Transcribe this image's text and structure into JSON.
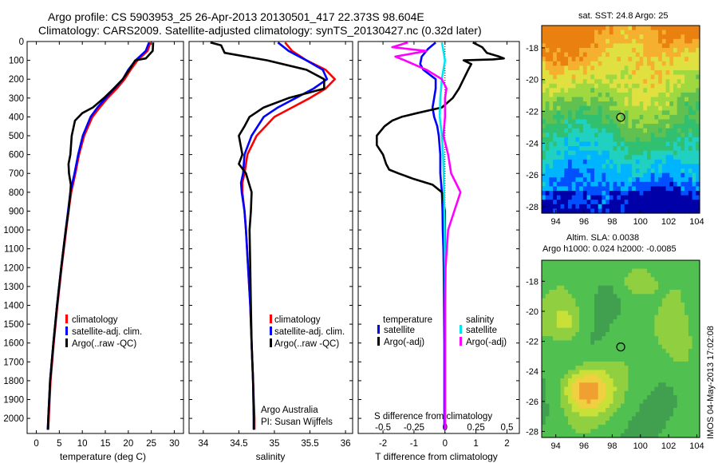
{
  "header": {
    "title_line1": "Argo profile: CS 5903953_25 26-Apr-2013 20130501_417 22.373S 98.604E",
    "title_line2": "Climatology: CARS2009. Satellite-adjusted climatology: synTS_20130427.nc (0.32d later)"
  },
  "colors": {
    "climatology": "#ff0000",
    "satellite_adj": "#0000ff",
    "argo": "#000000",
    "salinity_satellite": "#00e5ee",
    "salinity_argo": "#ff00ff"
  },
  "depth_ticks": [
    "0",
    "100",
    "200",
    "300",
    "400",
    "500",
    "600",
    "700",
    "800",
    "900",
    "1000",
    "1100",
    "1200",
    "1300",
    "1400",
    "1500",
    "1600",
    "1700",
    "1800",
    "1900",
    "2000"
  ],
  "chart_data": [
    {
      "type": "line",
      "name": "temperature",
      "xlabel": "temperature (deg C)",
      "ylabel": "",
      "xlim": [
        -2,
        32
      ],
      "ylim": [
        2080,
        0
      ],
      "x_ticks": [
        "0",
        "5",
        "10",
        "15",
        "20",
        "25",
        "30"
      ],
      "x_tick_values": [
        0,
        5,
        10,
        15,
        20,
        25,
        30
      ],
      "legend": [
        "climatology",
        "satellite-adj. clim.",
        "Argo(..raw -QC)"
      ],
      "series": [
        {
          "name": "climatology",
          "color": "#ff0000",
          "depth": [
            5,
            50,
            100,
            150,
            200,
            250,
            300,
            350,
            400,
            500,
            600,
            700,
            800,
            900,
            1000,
            1200,
            1400,
            1600,
            1800,
            2000,
            2060
          ],
          "values": [
            24.8,
            24.2,
            22.0,
            20.5,
            19.2,
            17.5,
            15.5,
            13.8,
            12.2,
            10.4,
            9.3,
            8.5,
            7.6,
            7.0,
            6.5,
            5.5,
            4.6,
            3.8,
            3.1,
            2.7,
            2.6
          ]
        },
        {
          "name": "satellite-adj. clim.",
          "color": "#0000ff",
          "depth": [
            5,
            50,
            100,
            150,
            200,
            250,
            300,
            350,
            400,
            500,
            600,
            700,
            800,
            900,
            1000,
            1200,
            1400,
            1600,
            1800,
            2000,
            2060
          ],
          "values": [
            24.5,
            23.8,
            21.6,
            20.0,
            18.8,
            17.0,
            15.1,
            13.3,
            11.8,
            10.1,
            9.1,
            8.3,
            7.4,
            6.9,
            6.4,
            5.4,
            4.5,
            3.7,
            3.0,
            2.6,
            2.5
          ]
        },
        {
          "name": "Argo(..raw -QC)",
          "color": "#000000",
          "depth": [
            5,
            50,
            90,
            100,
            150,
            200,
            250,
            300,
            350,
            380,
            420,
            500,
            600,
            650,
            700,
            760,
            800,
            900,
            1000,
            1200,
            1400,
            1600,
            1800,
            2000,
            2060
          ],
          "values": [
            25.4,
            25.3,
            23.8,
            21.5,
            20.2,
            18.8,
            16.8,
            14.7,
            12.3,
            10.0,
            8.4,
            7.7,
            7.4,
            7.0,
            7.1,
            7.5,
            7.4,
            7.0,
            6.4,
            5.4,
            4.5,
            3.7,
            3.0,
            2.6,
            2.5
          ]
        }
      ]
    },
    {
      "type": "line",
      "name": "salinity",
      "xlabel": "salinity",
      "ylabel": "",
      "xlim": [
        33.8,
        36.1
      ],
      "ylim": [
        2080,
        0
      ],
      "x_ticks": [
        "34",
        "34.5",
        "35",
        "35.5",
        "36"
      ],
      "x_tick_values": [
        34,
        34.5,
        35,
        35.5,
        36
      ],
      "legend": [
        "climatology",
        "satellite-adj. clim.",
        "Argo(..raw -QC)"
      ],
      "annotations": [
        "Argo Australia",
        "PI: Susan Wijffels"
      ],
      "series": [
        {
          "name": "climatology",
          "color": "#ff0000",
          "depth": [
            5,
            50,
            100,
            150,
            200,
            250,
            300,
            350,
            400,
            500,
            600,
            700,
            750,
            800,
            900,
            1000,
            1200,
            1400,
            1600,
            1800,
            2000,
            2060
          ],
          "values": [
            35.15,
            35.25,
            35.45,
            35.72,
            35.85,
            35.72,
            35.5,
            35.25,
            35.0,
            34.75,
            34.62,
            34.58,
            34.55,
            34.55,
            34.58,
            34.6,
            34.63,
            34.66,
            34.68,
            34.7,
            34.72,
            34.72
          ]
        },
        {
          "name": "satellite-adj. clim.",
          "color": "#0000ff",
          "depth": [
            5,
            50,
            100,
            150,
            200,
            250,
            300,
            350,
            400,
            500,
            600,
            700,
            750,
            800,
            900,
            1000,
            1200,
            1400,
            1600,
            1800,
            2000,
            2060
          ],
          "values": [
            35.05,
            35.2,
            35.45,
            35.68,
            35.74,
            35.55,
            35.3,
            35.05,
            34.85,
            34.68,
            34.58,
            34.56,
            34.53,
            34.54,
            34.58,
            34.6,
            34.63,
            34.66,
            34.68,
            34.7,
            34.71,
            34.71
          ]
        },
        {
          "name": "Argo(..raw -QC)",
          "color": "#000000",
          "depth": [
            5,
            20,
            60,
            100,
            150,
            200,
            250,
            300,
            350,
            400,
            450,
            500,
            600,
            650,
            700,
            800,
            900,
            1000,
            1200,
            1400,
            1600,
            1800,
            2000,
            2060
          ],
          "values": [
            34.1,
            34.25,
            34.3,
            34.9,
            35.45,
            35.7,
            35.7,
            35.2,
            34.85,
            34.65,
            34.58,
            34.5,
            34.55,
            34.5,
            34.6,
            34.68,
            34.67,
            34.65,
            34.66,
            34.67,
            34.68,
            34.7,
            34.71,
            34.71
          ]
        }
      ]
    },
    {
      "type": "line",
      "name": "differences",
      "xlabel": "T difference from climatology",
      "xlabel_top": "S difference from climatology",
      "ylabel": "",
      "xlim": [
        -2.8,
        2.4
      ],
      "ylim": [
        2080,
        0
      ],
      "x_ticks": [
        "-2",
        "-1",
        "0",
        "1",
        "2"
      ],
      "x_tick_values": [
        -2,
        -1,
        0,
        1,
        2
      ],
      "top_ticks": [
        "-0.5",
        "-0.25",
        "0",
        "0.25",
        "0.5"
      ],
      "legend_headers": [
        "temperature",
        "salinity"
      ],
      "legend": [
        "satellite",
        "Argo(-adj)",
        "satellite",
        "Argo(-adj)"
      ],
      "series": [
        {
          "name": "satellite",
          "kind": "temperature",
          "color": "#0000ff",
          "depth": [
            5,
            40,
            80,
            120,
            150,
            200,
            250,
            300,
            350,
            400,
            450,
            500,
            600,
            700,
            800,
            900,
            1000,
            1100,
            1200,
            1400,
            1600,
            1800,
            2000,
            2060
          ],
          "values": [
            -0.3,
            -0.55,
            -0.75,
            -0.8,
            -0.7,
            -0.3,
            -0.3,
            -0.35,
            -0.4,
            -0.35,
            -0.25,
            -0.2,
            -0.15,
            -0.15,
            -0.1,
            -0.08,
            -0.07,
            -0.05,
            -0.04,
            -0.03,
            -0.02,
            -0.02,
            -0.02,
            -0.02
          ]
        },
        {
          "name": "Argo(-adj)",
          "kind": "temperature",
          "color": "#000000",
          "depth": [
            5,
            30,
            60,
            80,
            90,
            95,
            100,
            120,
            150,
            200,
            250,
            300,
            350,
            380,
            400,
            420,
            450,
            500,
            550,
            600,
            650,
            680,
            700,
            730,
            760,
            800,
            900,
            1000,
            1200,
            1400,
            1600,
            1800,
            2000,
            2060
          ],
          "values": [
            0.9,
            1.2,
            1.35,
            1.75,
            1.9,
            1.55,
            0.6,
            0.85,
            0.75,
            0.6,
            0.45,
            0.25,
            -0.1,
            -0.9,
            -1.4,
            -1.7,
            -1.95,
            -2.2,
            -2.2,
            -2.0,
            -1.9,
            -1.8,
            -1.5,
            -1.0,
            -0.4,
            -0.1,
            0.0,
            0.0,
            0.0,
            0.0,
            0.0,
            0.0,
            0.0,
            0.0
          ]
        },
        {
          "name": "satellite",
          "kind": "salinity",
          "color": "#00e5ee",
          "depth": [
            5,
            50,
            100,
            150,
            200,
            300,
            400,
            500,
            600,
            700,
            800,
            1000,
            1200,
            1400,
            1600,
            1800,
            2000,
            2060
          ],
          "values": [
            -0.1,
            -0.05,
            0.0,
            -0.05,
            -0.1,
            -0.15,
            -0.17,
            -0.1,
            -0.06,
            -0.04,
            -0.03,
            -0.01,
            0.0,
            0.0,
            0.0,
            0.0,
            0.0,
            0.0
          ]
        },
        {
          "name": "Argo(-adj)",
          "kind": "salinity",
          "color": "#ff00ff",
          "depth": [
            5,
            30,
            50,
            80,
            100,
            150,
            200,
            250,
            300,
            400,
            500,
            600,
            700,
            750,
            800,
            900,
            1000,
            1200,
            1400,
            1600,
            1800,
            2000,
            2060
          ],
          "values": [
            -1.2,
            -1.7,
            -0.6,
            -1.6,
            -1.3,
            -0.6,
            -0.1,
            0.05,
            0.0,
            0.0,
            -0.05,
            0.1,
            0.2,
            0.35,
            0.5,
            0.3,
            0.1,
            0.02,
            0.0,
            0.0,
            0.0,
            0.0,
            0.0
          ]
        }
      ]
    },
    {
      "type": "heatmap",
      "name": "sst_map",
      "title": "sat. SST: 24.8 Argo: 25",
      "x_ticks": [
        "94",
        "96",
        "98",
        "100",
        "102",
        "104"
      ],
      "x_tick_values": [
        94,
        96,
        98,
        100,
        102,
        104
      ],
      "y_ticks": [
        "-18",
        "-20",
        "-22",
        "-24",
        "-26",
        "-28"
      ],
      "y_tick_values": [
        -18,
        -20,
        -22,
        -24,
        -26,
        -28
      ],
      "xlim": [
        93,
        104.2
      ],
      "ylim": [
        -28.4,
        -16.6
      ],
      "marker": {
        "lon": 98.604,
        "lat": -22.373
      },
      "colormap": [
        "#0000a8",
        "#0050ff",
        "#00b4ff",
        "#20d0c0",
        "#30c070",
        "#60c050",
        "#a0d840",
        "#e0e040",
        "#f5b030",
        "#e98010"
      ]
    },
    {
      "type": "heatmap",
      "name": "sla_map",
      "title": "Altim. SLA: 0.0038",
      "subtitle": "Argo h1000: 0.024 h2000: -0.0085",
      "x_ticks": [
        "94",
        "96",
        "98",
        "100",
        "102",
        "104"
      ],
      "x_tick_values": [
        94,
        96,
        98,
        100,
        102,
        104
      ],
      "y_ticks": [
        "-18",
        "-20",
        "-22",
        "-24",
        "-26",
        "-28"
      ],
      "y_tick_values": [
        -18,
        -20,
        -22,
        -24,
        -26,
        -28
      ],
      "xlim": [
        93,
        104.2
      ],
      "ylim": [
        -28.4,
        -16.6
      ],
      "marker": {
        "lon": 98.604,
        "lat": -22.373
      },
      "colormap": [
        "#40a050",
        "#50c050",
        "#90d040",
        "#c8e038",
        "#f0d040",
        "#f0a030"
      ]
    }
  ],
  "footer": {
    "vertical_text": "IMOS 04-May-2013 17:02:08"
  }
}
